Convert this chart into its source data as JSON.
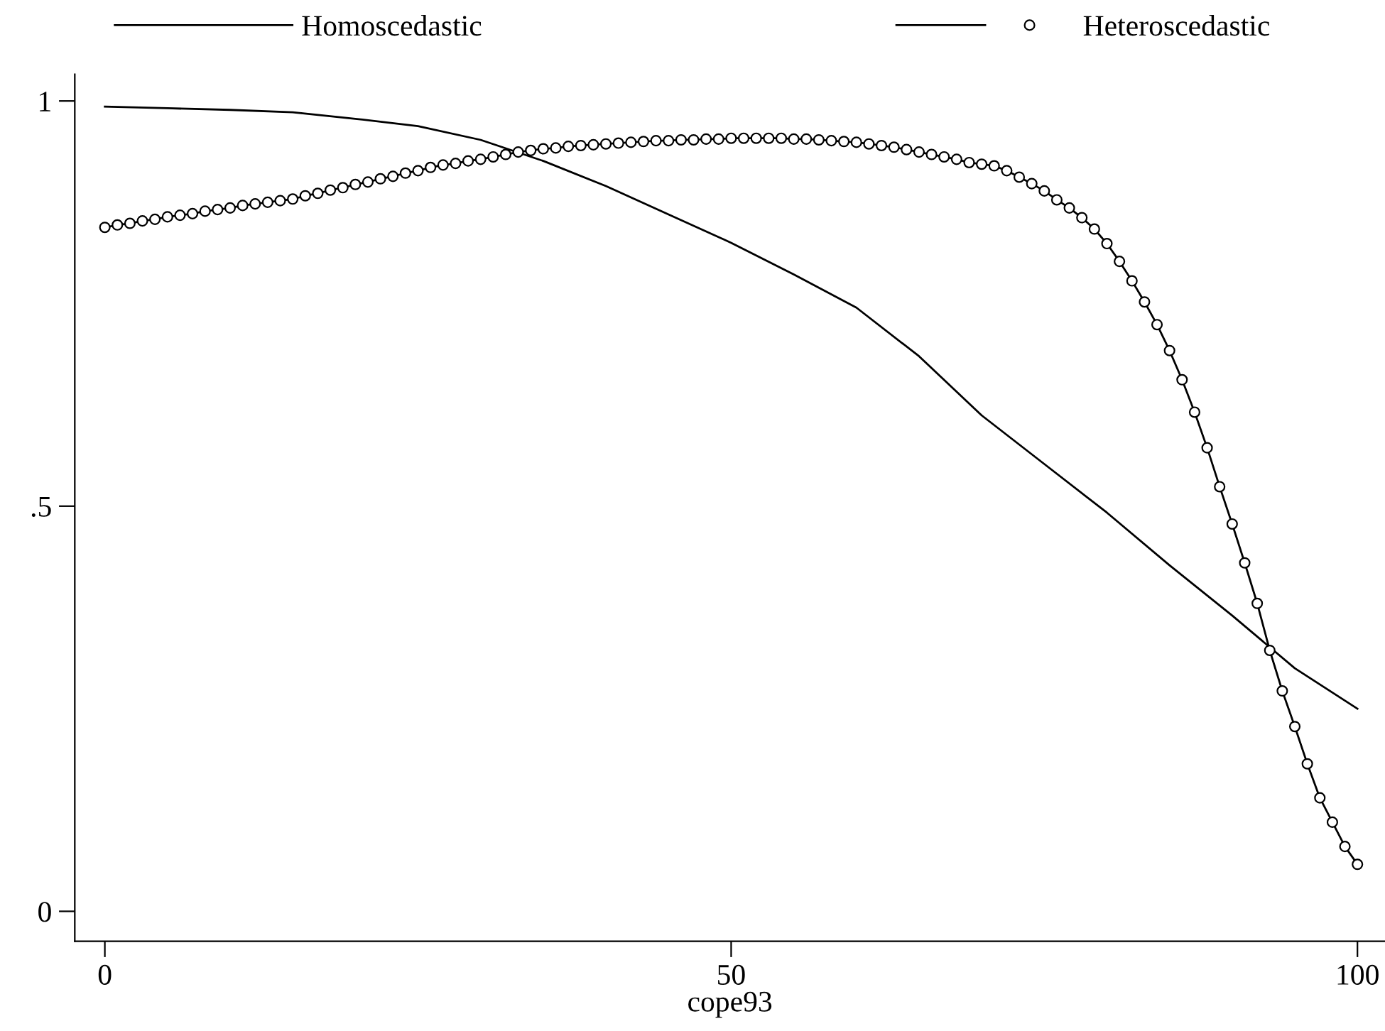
{
  "chart_data": {
    "type": "line",
    "xlabel": "cope93",
    "xlim": [
      -2.4,
      102.2
    ],
    "ylim": [
      -0.037,
      1.033
    ],
    "xticks": [
      0,
      50,
      100
    ],
    "yticks": [
      0,
      {
        "value": 0.5,
        "label": ".5"
      },
      1
    ],
    "grid": false,
    "legend": "top",
    "series": [
      {
        "name": "Homoscedastic",
        "color": "#000000",
        "marker": "none",
        "x": [
          0,
          5,
          10,
          15,
          20,
          25,
          30,
          35,
          40,
          45,
          50,
          55,
          60,
          65,
          70,
          75,
          80,
          85,
          90,
          95,
          100
        ],
        "values": [
          0.993,
          0.991,
          0.989,
          0.986,
          0.978,
          0.969,
          0.952,
          0.926,
          0.895,
          0.86,
          0.825,
          0.786,
          0.745,
          0.685,
          0.612,
          0.552,
          0.492,
          0.427,
          0.365,
          0.3,
          0.25
        ]
      },
      {
        "name": "Heteroscedastic",
        "color": "#000000",
        "marker": "circle",
        "x": [
          0,
          1,
          2,
          3,
          4,
          5,
          6,
          7,
          8,
          9,
          10,
          11,
          12,
          13,
          14,
          15,
          16,
          17,
          18,
          19,
          20,
          21,
          22,
          23,
          24,
          25,
          26,
          27,
          28,
          29,
          30,
          31,
          32,
          33,
          34,
          35,
          36,
          37,
          38,
          39,
          40,
          41,
          42,
          43,
          44,
          45,
          46,
          47,
          48,
          49,
          50,
          51,
          52,
          53,
          54,
          55,
          56,
          57,
          58,
          59,
          60,
          61,
          62,
          63,
          64,
          65,
          66,
          67,
          68,
          69,
          70,
          71,
          72,
          73,
          74,
          75,
          76,
          77,
          78,
          79,
          80,
          81,
          82,
          83,
          84,
          85,
          86,
          87,
          88,
          89,
          90,
          91,
          92,
          93,
          94,
          95,
          96,
          97,
          98,
          99,
          100
        ],
        "values": [
          0.844,
          0.847,
          0.849,
          0.852,
          0.854,
          0.857,
          0.859,
          0.861,
          0.864,
          0.866,
          0.868,
          0.871,
          0.873,
          0.875,
          0.877,
          0.879,
          0.883,
          0.886,
          0.89,
          0.893,
          0.897,
          0.9,
          0.904,
          0.907,
          0.911,
          0.914,
          0.918,
          0.921,
          0.923,
          0.926,
          0.928,
          0.931,
          0.934,
          0.937,
          0.939,
          0.941,
          0.942,
          0.944,
          0.945,
          0.946,
          0.947,
          0.948,
          0.949,
          0.95,
          0.951,
          0.951,
          0.952,
          0.952,
          0.953,
          0.953,
          0.954,
          0.954,
          0.954,
          0.954,
          0.954,
          0.953,
          0.953,
          0.952,
          0.951,
          0.95,
          0.949,
          0.947,
          0.945,
          0.943,
          0.94,
          0.937,
          0.934,
          0.931,
          0.928,
          0.924,
          0.922,
          0.92,
          0.914,
          0.906,
          0.898,
          0.889,
          0.878,
          0.868,
          0.856,
          0.842,
          0.824,
          0.802,
          0.778,
          0.752,
          0.724,
          0.692,
          0.656,
          0.616,
          0.572,
          0.524,
          0.478,
          0.43,
          0.38,
          0.322,
          0.272,
          0.228,
          0.182,
          0.14,
          0.11,
          0.08,
          0.058
        ]
      }
    ]
  }
}
